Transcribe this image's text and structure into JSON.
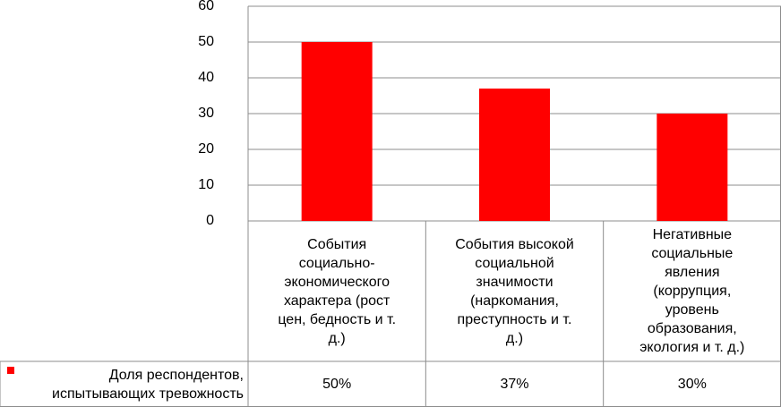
{
  "chart_data": {
    "type": "bar",
    "categories": [
      "События социально-экономического характера (рост цен, бедность и т. д.)",
      "События высокой социальной значимости (наркомания, преступность и т. д.)",
      "Негативные социальные явления (коррупция, уровень образования, экология и т. д.)"
    ],
    "category_lines": [
      "События\nсоциально-\nэкономического\nхарактера (рост\nцен, бедность и т.\nд.)",
      "События высокой\nсоциальной\nзначимости\n(наркомания,\nпреступность и т.\nд.)",
      "Негативные\nсоциальные\nявления\n(коррупция,\nуровень\nобразования,\nэкология и т. д.)"
    ],
    "series": [
      {
        "name": "Доля респондентов, испытывающих тревожность",
        "values": [
          50,
          37,
          30
        ],
        "data_labels": [
          "50%",
          "37%",
          "30%"
        ],
        "color": "#ff0000"
      }
    ],
    "ylim": [
      0,
      60
    ],
    "yticks": [
      0,
      10,
      20,
      30,
      40,
      50,
      60
    ],
    "grid": true,
    "legend": "data-table"
  }
}
